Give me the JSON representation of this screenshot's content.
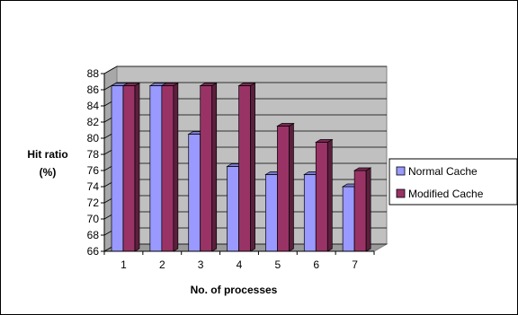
{
  "chart_data": {
    "type": "bar",
    "categories": [
      "1",
      "2",
      "3",
      "4",
      "5",
      "6",
      "7"
    ],
    "series": [
      {
        "name": "Normal Cache",
        "values": [
          86.5,
          86.5,
          80.5,
          76.5,
          75.5,
          75.5,
          74
        ],
        "color": "#9999ff"
      },
      {
        "name": "Modified Cache",
        "values": [
          86.5,
          86.5,
          86.5,
          86.5,
          81.5,
          79.5,
          76
        ],
        "color": "#993366"
      }
    ],
    "title": "",
    "xlabel": "No. of processes",
    "ylabel": "Hit ratio (%)",
    "ylabel_lines": [
      "Hit ratio",
      "(%)"
    ],
    "ylim": [
      66,
      88
    ],
    "yticks": [
      "66",
      "68",
      "70",
      "72",
      "74",
      "76",
      "78",
      "80",
      "82",
      "84",
      "86",
      "88"
    ],
    "grid": true,
    "legend_position": "right",
    "plot_background": "#c0c0c0"
  }
}
